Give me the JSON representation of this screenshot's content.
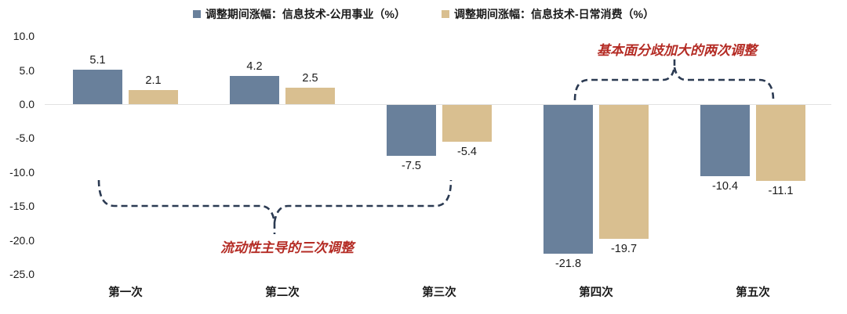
{
  "chart_data": {
    "type": "bar",
    "categories": [
      "第一次",
      "第二次",
      "第三次",
      "第四次",
      "第五次"
    ],
    "series": [
      {
        "name": "调整期间涨幅：信息技术-公用事业（%）",
        "color": "#69809b",
        "values": [
          5.1,
          4.2,
          -7.5,
          -21.8,
          -10.4
        ]
      },
      {
        "name": "调整期间涨幅：信息技术-日常消费（%）",
        "color": "#d9bf90",
        "values": [
          2.1,
          2.5,
          -5.4,
          -19.7,
          -11.1
        ]
      }
    ],
    "title": "",
    "xlabel": "",
    "ylabel": "",
    "ylim": [
      -25.0,
      10.0
    ],
    "yticks": [
      10.0,
      5.0,
      0.0,
      -5.0,
      -10.0,
      -15.0,
      -20.0,
      -25.0
    ],
    "ytick_labels": [
      "10.0",
      "5.0",
      "0.0",
      "-5.0",
      "-10.0",
      "-15.0",
      "-20.0",
      "-25.0"
    ],
    "grid": false,
    "legend_position": "top",
    "value_labels": [
      "5.1",
      "2.1",
      "4.2",
      "2.5",
      "-7.5",
      "-5.4",
      "-21.8",
      "-19.7",
      "-10.4",
      "-11.1"
    ],
    "annotations": [
      {
        "text": "流动性主导的三次调整",
        "brace": "below",
        "spans_categories": [
          "第一次",
          "第二次",
          "第三次"
        ]
      },
      {
        "text": "基本面分歧加大的两次调整",
        "brace": "above",
        "spans_categories": [
          "第四次",
          "第五次"
        ]
      }
    ],
    "colors": {
      "annotation_text": "#b42b24",
      "brace": "#2b3a52",
      "axis_text": "#1a1a1a",
      "zero_line": "#e2e2e2"
    }
  }
}
